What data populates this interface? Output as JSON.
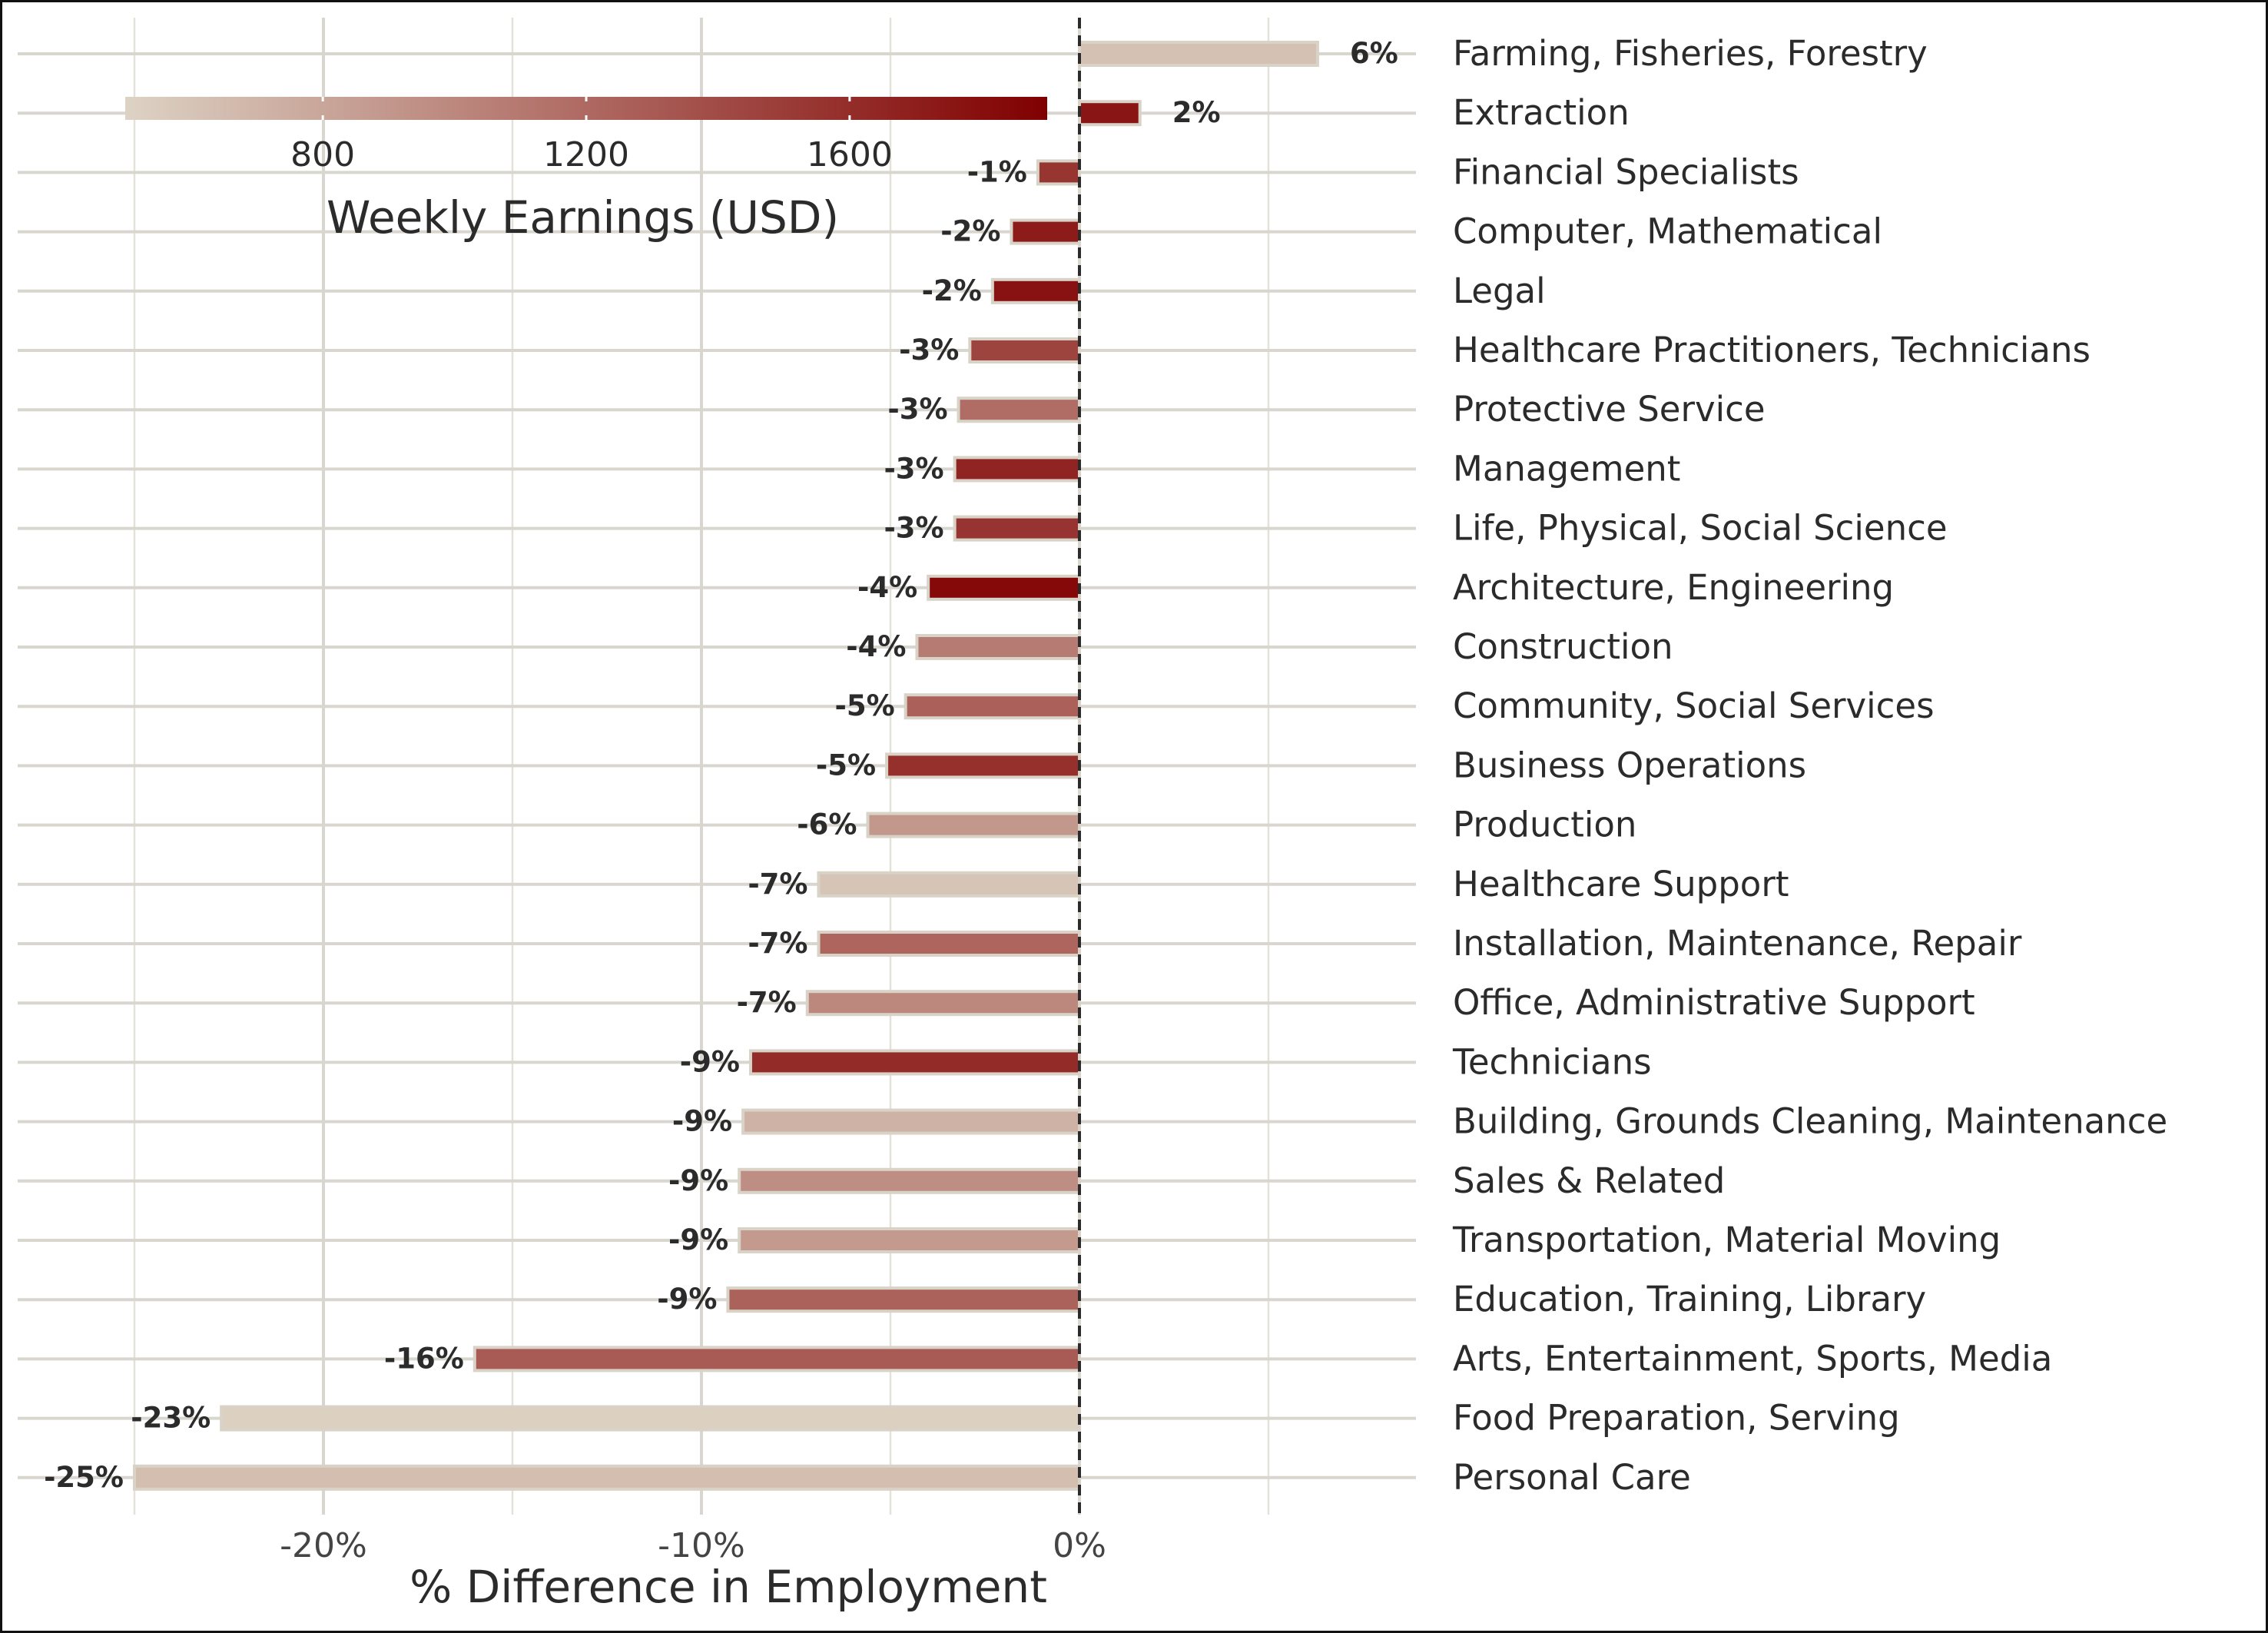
{
  "chart_data": {
    "type": "bar",
    "orientation": "horizontal",
    "xlabel": "% Difference in Employment",
    "xlim": [
      -25.5,
      9.2
    ],
    "x_ticks": [
      -20,
      -10,
      0
    ],
    "x_tick_labels": [
      "-20%",
      "-10%",
      "0%"
    ],
    "grid": true,
    "reference_line": 0,
    "colorbar": {
      "title": "Weekly Earnings (USD)",
      "range": [
        500,
        1900
      ],
      "ticks": [
        800,
        1200,
        1600
      ],
      "tick_labels": [
        "800",
        "1200",
        "1600"
      ],
      "color_low": "#ddd3c4",
      "color_high": "#800000",
      "placement": "top-left"
    },
    "categories": [
      "Farming, Fisheries, Forestry",
      "Extraction",
      "Financial Specialists",
      "Computer, Mathematical",
      "Legal",
      "Healthcare Practitioners, Technicians",
      "Protective Service",
      "Management",
      "Life, Physical, Social Science",
      "Architecture, Engineering",
      "Construction",
      "Community, Social Services",
      "Business Operations",
      "Production",
      "Healthcare Support",
      "Installation, Maintenance, Repair",
      "Office, Administrative Support",
      "Technicians",
      "Building, Grounds Cleaning, Maintenance",
      "Sales & Related",
      "Transportation, Material Moving",
      "Education, Training, Library",
      "Arts, Entertainment, Sports, Media",
      "Food Preparation, Serving",
      "Personal Care"
    ],
    "values": [
      6.3,
      1.6,
      -1.1,
      -1.8,
      -2.3,
      -2.9,
      -3.2,
      -3.3,
      -3.3,
      -4.0,
      -4.3,
      -4.6,
      -5.1,
      -5.6,
      -6.9,
      -6.9,
      -7.2,
      -8.7,
      -8.9,
      -9.0,
      -9.0,
      -9.3,
      -16.0,
      -22.7,
      -25.0
    ],
    "value_labels": [
      "6%",
      "2%",
      "-1%",
      "-2%",
      "-2%",
      "-3%",
      "-3%",
      "-3%",
      "-3%",
      "-4%",
      "-4%",
      "-5%",
      "-5%",
      "-6%",
      "-7%",
      "-7%",
      "-7%",
      "-9%",
      "-9%",
      "-9%",
      "-9%",
      "-9%",
      "-16%",
      "-23%",
      "-25%"
    ],
    "weekly_earnings": [
      620,
      1760,
      1550,
      1720,
      1780,
      1450,
      1180,
      1660,
      1560,
      1840,
      1080,
      1260,
      1580,
      900,
      600,
      1230,
      1000,
      1610,
      720,
      960,
      880,
      1250,
      1300,
      520,
      640
    ]
  }
}
